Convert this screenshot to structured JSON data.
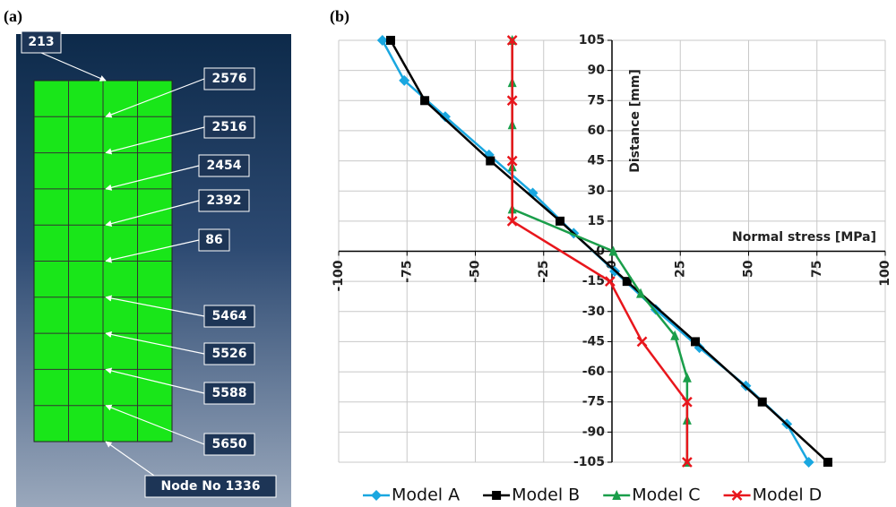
{
  "panel_a": {
    "label": "(a)",
    "nodes": [
      "213",
      "2576",
      "2516",
      "2454",
      "2392",
      "86",
      "5464",
      "5526",
      "5588",
      "5650",
      "Node No 1336"
    ]
  },
  "chart_data": {
    "type": "line",
    "panel_label": "(b)",
    "x_label": "Normal stress [MPa]",
    "y_label": "Distance [mm]",
    "xlim": [
      -100,
      100
    ],
    "xticks": [
      -100,
      -75,
      -50,
      -25,
      0,
      25,
      50,
      75,
      100
    ],
    "ylim": [
      -105,
      105
    ],
    "yticks": [
      -105,
      -90,
      -75,
      -60,
      -45,
      -30,
      -15,
      0,
      15,
      30,
      45,
      60,
      75,
      90,
      105
    ],
    "grid": true,
    "legend": "bottom",
    "series": [
      {
        "name": "Model A",
        "color": "#1aa7e0",
        "marker": "diamond",
        "x": [
          -84,
          -76,
          -61,
          -45,
          -29,
          -14,
          1,
          16,
          32,
          49,
          64,
          72
        ],
        "values": [
          105,
          85,
          67,
          48,
          29,
          9,
          -10,
          -29,
          -48,
          -67,
          -86,
          -105
        ]
      },
      {
        "name": "Model B",
        "color": "#000000",
        "marker": "square",
        "x": [
          -81,
          -68.5,
          -44.5,
          -19,
          5.5,
          30.5,
          55,
          79
        ],
        "values": [
          105,
          75,
          45,
          15,
          -15,
          -45,
          -75,
          -105
        ]
      },
      {
        "name": "Model C",
        "color": "#1a9e4a",
        "marker": "triangle",
        "x": [
          -36.5,
          -36.5,
          -36.5,
          -36.5,
          -36.5,
          0.5,
          10.5,
          23,
          27.5,
          27.5,
          27.5
        ],
        "values": [
          105,
          84,
          63,
          42,
          21,
          0,
          -21,
          -42,
          -63,
          -84,
          -105
        ]
      },
      {
        "name": "Model D",
        "color": "#e8161c",
        "marker": "x",
        "x": [
          -36.5,
          -36.5,
          -36.5,
          -36.5,
          -0.7,
          11,
          27.5,
          27.5
        ],
        "values": [
          105,
          75,
          45,
          15,
          -15,
          -45,
          -75,
          -105
        ]
      }
    ]
  }
}
